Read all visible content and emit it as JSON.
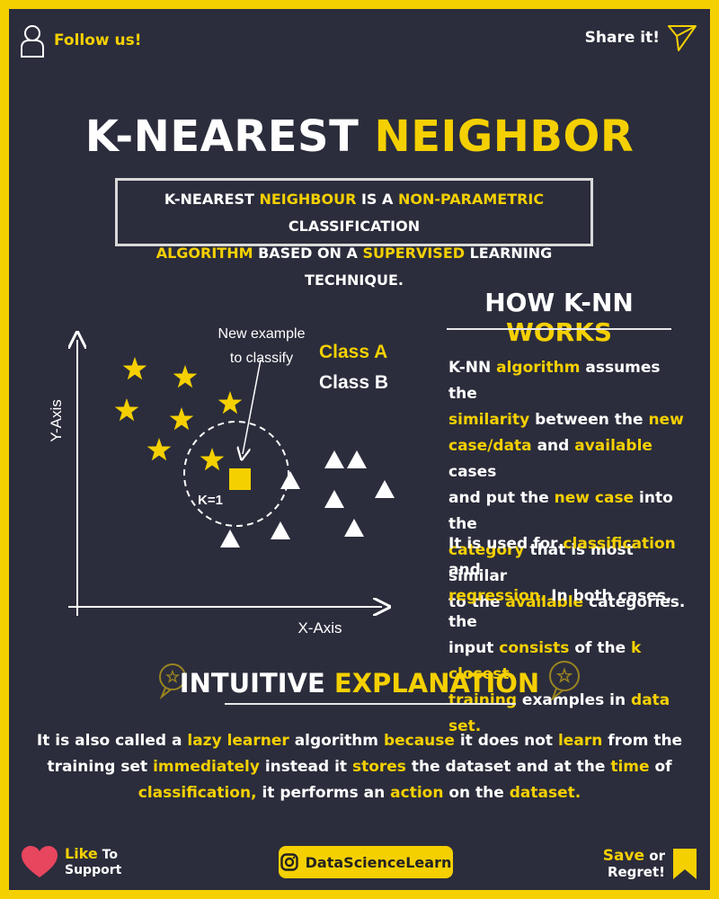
{
  "header": {
    "follow_label": "Follow us!",
    "share_label": "Share it!"
  },
  "title": {
    "part1": "K-NEAREST ",
    "part2": "NEIGHBOR"
  },
  "definition": {
    "l1a": "K-NEAREST ",
    "l1b": "NEIGHBOUR",
    "l1c": " IS A ",
    "l1d": "NON-PARAMETRIC",
    "l1e": " CLASSIFICATION",
    "l2a": "ALGORITHM",
    "l2b": " BASED ON A ",
    "l2c": "SUPERVISED",
    "l2d": " LEARNING TECHNIQUE."
  },
  "diagram": {
    "new_example_line1": "New example",
    "new_example_line2": "to classify",
    "class_a": "Class A",
    "class_b": "Class B",
    "k_label": "K=1",
    "x_axis": "X-Axis",
    "y_axis": "Y-Axis"
  },
  "how": {
    "heading_a": "HOW K-NN ",
    "heading_b": "WORKS",
    "p1": [
      [
        "K-NN ",
        "w"
      ],
      [
        "algorithm",
        "y"
      ],
      [
        " assumes the",
        "w"
      ],
      [
        "\n",
        "br"
      ],
      [
        "similarity",
        "y"
      ],
      [
        " between the ",
        "w"
      ],
      [
        "new",
        "y"
      ],
      [
        "\n",
        "br"
      ],
      [
        "case/data",
        "y"
      ],
      [
        " and ",
        "w"
      ],
      [
        "available",
        "y"
      ],
      [
        " cases",
        "w"
      ],
      [
        "\n",
        "br"
      ],
      [
        "and put the ",
        "w"
      ],
      [
        "new case",
        "y"
      ],
      [
        " into the",
        "w"
      ],
      [
        "\n",
        "br"
      ],
      [
        "category",
        "y"
      ],
      [
        " that is most similar",
        "w"
      ],
      [
        "\n",
        "br"
      ],
      [
        "to the ",
        "w"
      ],
      [
        "available",
        "y"
      ],
      [
        " categories.",
        "w"
      ]
    ],
    "p2": [
      [
        "It is used for ",
        "w"
      ],
      [
        "classification",
        "y"
      ],
      [
        " and",
        "w"
      ],
      [
        "\n",
        "br"
      ],
      [
        "regression.",
        "y"
      ],
      [
        " In both cases, the",
        "w"
      ],
      [
        "\n",
        "br"
      ],
      [
        "input ",
        "w"
      ],
      [
        "consists",
        "y"
      ],
      [
        " of the ",
        "w"
      ],
      [
        "k closest",
        "y"
      ],
      [
        "\n",
        "br"
      ],
      [
        "training",
        "y"
      ],
      [
        " examples in ",
        "w"
      ],
      [
        "data set.",
        "y"
      ]
    ]
  },
  "intuitive": {
    "heading_a": "INTUITIVE ",
    "heading_b": "EXPLANATION",
    "text": [
      [
        "It is also called a ",
        "w"
      ],
      [
        "lazy learner",
        "y"
      ],
      [
        " algorithm ",
        "w"
      ],
      [
        "because",
        "y"
      ],
      [
        " it does not ",
        "w"
      ],
      [
        "learn",
        "y"
      ],
      [
        " from the",
        "w"
      ],
      [
        "\n",
        "br"
      ],
      [
        "training set ",
        "w"
      ],
      [
        "immediately",
        "y"
      ],
      [
        " instead it ",
        "w"
      ],
      [
        "stores",
        "y"
      ],
      [
        " the dataset and at the ",
        "w"
      ],
      [
        "time",
        "y"
      ],
      [
        " of",
        "w"
      ],
      [
        "\n",
        "br"
      ],
      [
        "classification,",
        "y"
      ],
      [
        " it performs an ",
        "w"
      ],
      [
        "action",
        "y"
      ],
      [
        " on the ",
        "w"
      ],
      [
        "dataset.",
        "y"
      ]
    ]
  },
  "footer": {
    "like": "Like",
    "to": " To",
    "support": "Support",
    "handle": "DataScienceLearn",
    "save": "Save",
    "or": " or",
    "regret": "Regret!"
  },
  "colors": {
    "accent": "#f5d000",
    "background": "#2b2d3c",
    "text": "#ffffff"
  }
}
